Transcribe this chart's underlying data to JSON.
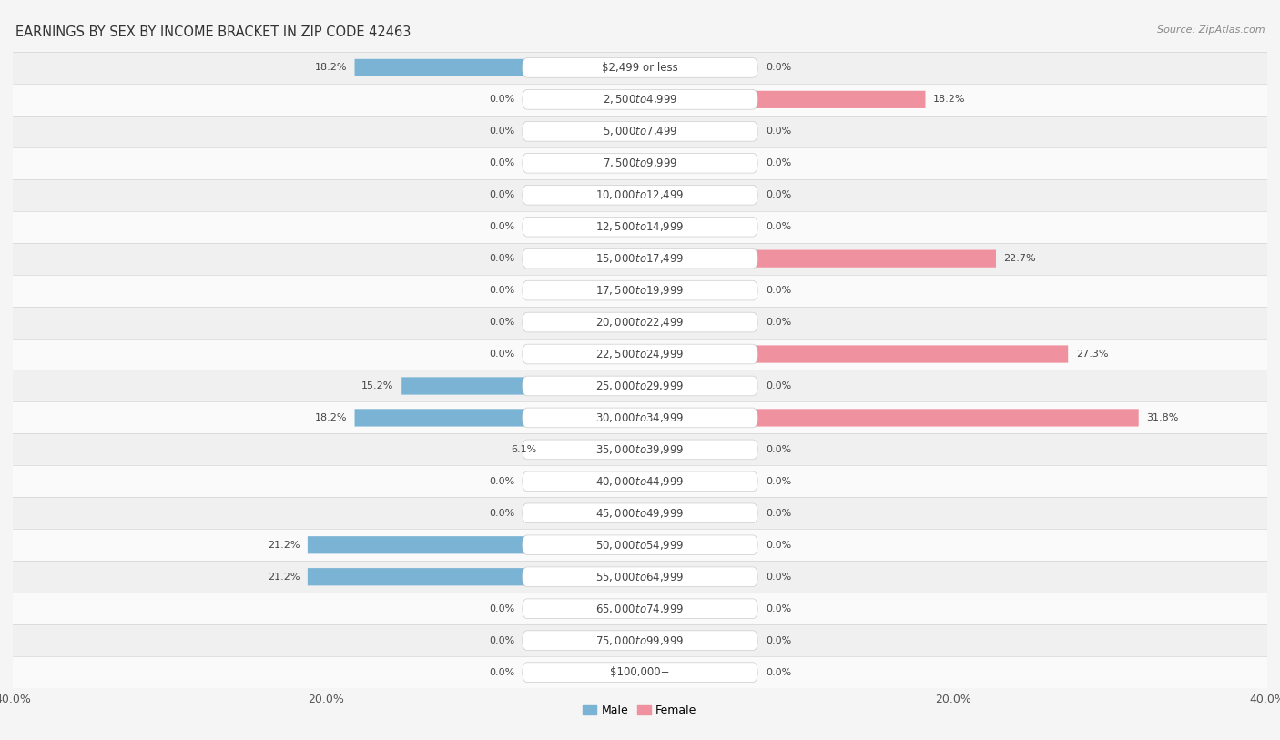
{
  "title": "EARNINGS BY SEX BY INCOME BRACKET IN ZIP CODE 42463",
  "source": "Source: ZipAtlas.com",
  "categories": [
    "$2,499 or less",
    "$2,500 to $4,999",
    "$5,000 to $7,499",
    "$7,500 to $9,999",
    "$10,000 to $12,499",
    "$12,500 to $14,999",
    "$15,000 to $17,499",
    "$17,500 to $19,999",
    "$20,000 to $22,499",
    "$22,500 to $24,999",
    "$25,000 to $29,999",
    "$30,000 to $34,999",
    "$35,000 to $39,999",
    "$40,000 to $44,999",
    "$45,000 to $49,999",
    "$50,000 to $54,999",
    "$55,000 to $64,999",
    "$65,000 to $74,999",
    "$75,000 to $99,999",
    "$100,000+"
  ],
  "male_values": [
    18.2,
    0.0,
    0.0,
    0.0,
    0.0,
    0.0,
    0.0,
    0.0,
    0.0,
    0.0,
    15.2,
    18.2,
    6.1,
    0.0,
    0.0,
    21.2,
    21.2,
    0.0,
    0.0,
    0.0
  ],
  "female_values": [
    0.0,
    18.2,
    0.0,
    0.0,
    0.0,
    0.0,
    22.7,
    0.0,
    0.0,
    27.3,
    0.0,
    31.8,
    0.0,
    0.0,
    0.0,
    0.0,
    0.0,
    0.0,
    0.0,
    0.0
  ],
  "male_color": "#7ab3d4",
  "female_color": "#f0919f",
  "male_label_color": "#5b9abf",
  "female_label_color": "#e86c7e",
  "male_label": "Male",
  "female_label": "Female",
  "xlim": 40.0,
  "bar_height": 0.55,
  "label_box_color": "#dde8f0",
  "label_box_female_color": "#f5d5da",
  "row_colors": [
    "#f0f0f0",
    "#fafafa"
  ],
  "title_fontsize": 10.5,
  "label_fontsize": 8.0,
  "cat_fontsize": 8.5,
  "axis_fontsize": 9.0,
  "source_fontsize": 8.0,
  "value_fontsize": 8.0
}
